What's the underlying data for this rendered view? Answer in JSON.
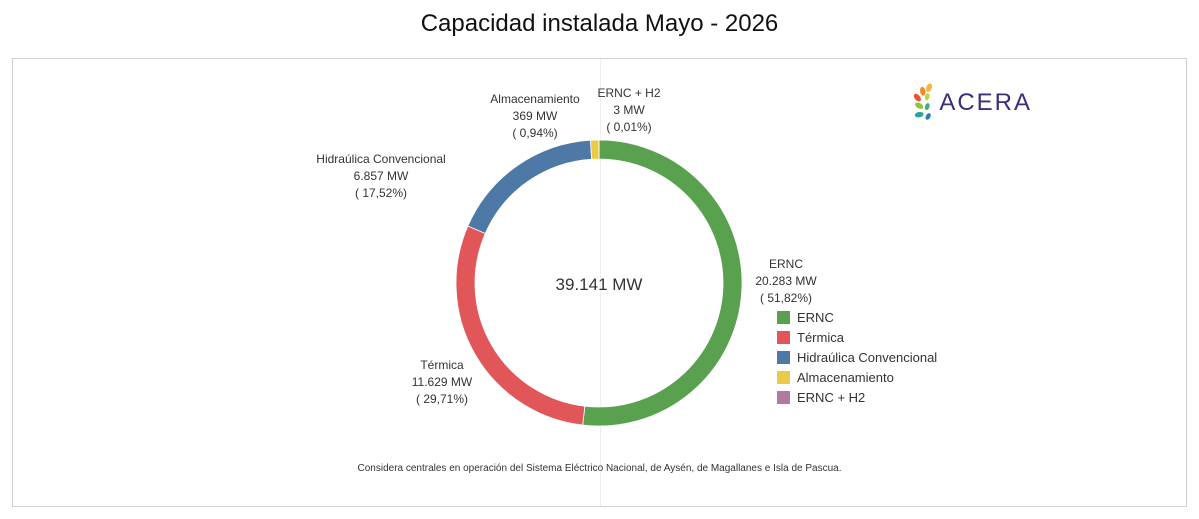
{
  "title": "Capacidad instalada Mayo - 2026",
  "footnote": "Considera centrales en operación del Sistema Eléctrico Nacional, de Aysén, de Magallanes e Isla de Pascua.",
  "logo": {
    "text": "ACERA"
  },
  "center_total": "39.141 MW",
  "chart_data": {
    "type": "pie",
    "donut": true,
    "title": "Capacidad instalada Mayo - 2026",
    "total_label": "39.141 MW",
    "legend_position": "right",
    "slices": [
      {
        "name": "ERNC",
        "value": 20283,
        "value_label": "20.283 MW",
        "percent_label": "( 51,82%)",
        "color": "#59a14f"
      },
      {
        "name": "Térmica",
        "value": 11629,
        "value_label": "11.629 MW",
        "percent_label": "( 29,71%)",
        "color": "#e15759"
      },
      {
        "name": "Hidraúlica Convencional",
        "value": 6857,
        "value_label": "6.857 MW",
        "percent_label": "( 17,52%)",
        "color": "#4e79a7"
      },
      {
        "name": "Almacenamiento",
        "value": 369,
        "value_label": "369 MW",
        "percent_label": "( 0,94%)",
        "color": "#edc948"
      },
      {
        "name": "ERNC + H2",
        "value": 3,
        "value_label": "3 MW",
        "percent_label": "( 0,01%)",
        "color": "#b07aa1"
      }
    ]
  }
}
